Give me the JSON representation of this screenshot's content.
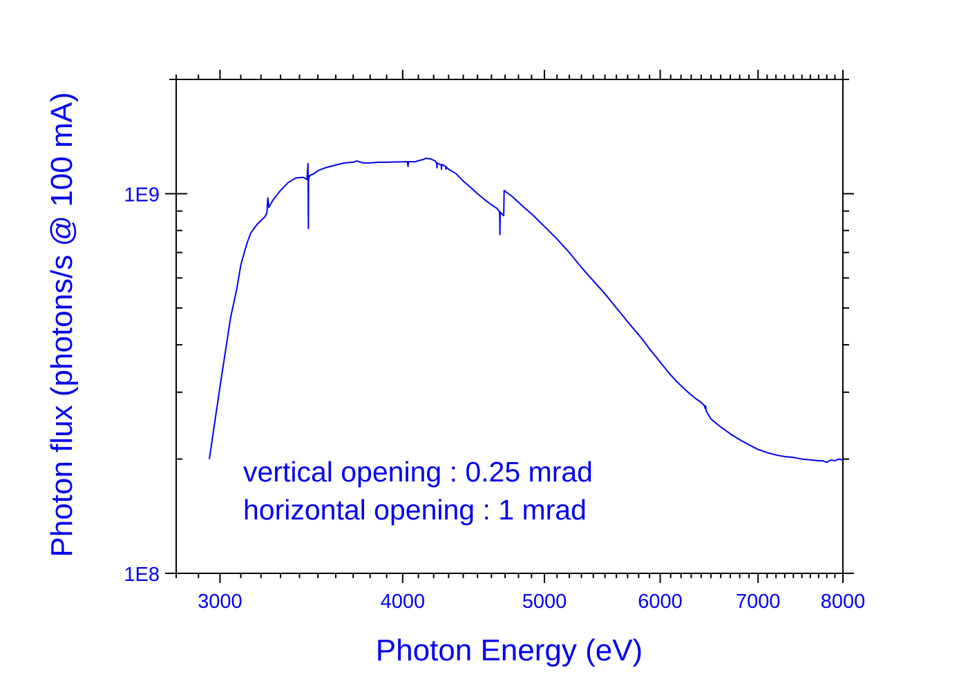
{
  "chart_data": {
    "type": "line",
    "xlabel": "Photon Energy (eV)",
    "ylabel": "Photon flux (photons/s @ 100 mA)",
    "x_scale": "log",
    "y_scale": "log",
    "xlim": [
      2800,
      8000
    ],
    "ylim": [
      100000000.0,
      2000000000.0
    ],
    "x_ticks": [
      {
        "value": 3000,
        "label": "3000"
      },
      {
        "value": 4000,
        "label": "4000"
      },
      {
        "value": 5000,
        "label": "5000"
      },
      {
        "value": 6000,
        "label": "6000"
      },
      {
        "value": 7000,
        "label": "7000"
      },
      {
        "value": 8000,
        "label": "8000"
      }
    ],
    "y_ticks": [
      {
        "value": 100000000,
        "label": "1E8"
      },
      {
        "value": 1000000000,
        "label": "1E9"
      }
    ],
    "grid": false,
    "color": "#0000ee",
    "annotations": [
      "vertical opening : 0.25 mrad",
      "horizontal opening :  1 mrad"
    ],
    "series": [
      {
        "x": [
          2950,
          3000,
          3050,
          3080,
          3100,
          3130,
          3150,
          3180,
          3220,
          3230,
          3235,
          3240,
          3260,
          3300,
          3340,
          3380,
          3420,
          3440,
          3446,
          3448,
          3449,
          3451,
          3452,
          3454,
          3456,
          3460,
          3480,
          3500,
          3540,
          3600,
          3650,
          3700,
          3720,
          3760,
          3800,
          3850,
          3900,
          3950,
          4000,
          4030,
          4034,
          4036,
          4040,
          4080,
          4100,
          4130,
          4150,
          4180,
          4210,
          4220,
          4222,
          4224,
          4240,
          4250,
          4252,
          4254,
          4270,
          4280,
          4282,
          4284,
          4300,
          4350,
          4400,
          4450,
          4500,
          4550,
          4600,
          4640,
          4655,
          4660,
          4662,
          4664,
          4690,
          4693,
          4700,
          4750,
          4800,
          4850,
          4900,
          5000,
          5100,
          5200,
          5300,
          5400,
          5500,
          5600,
          5650,
          5700,
          5750,
          5800,
          5820,
          5850,
          5900,
          5950,
          6000,
          6050,
          6100,
          6150,
          6200,
          6250,
          6300,
          6350,
          6400,
          6430,
          6440,
          6445,
          6450,
          6480,
          6500,
          6600,
          6700,
          6800,
          6900,
          7000,
          7100,
          7200,
          7300,
          7400,
          7500,
          7600,
          7700,
          7750,
          7800,
          7850,
          7900,
          7950,
          8000
        ],
        "y": [
          200000000,
          310000000,
          470000000,
          560000000,
          650000000,
          740000000,
          790000000,
          830000000,
          870000000,
          890000000,
          975000000,
          920000000,
          960000000,
          1020000000,
          1070000000,
          1100000000,
          1105000000,
          1090000000,
          1200000000,
          810000000,
          1095000000,
          1100000000,
          1115000000,
          1110000000,
          1115000000,
          1120000000,
          1130000000,
          1150000000,
          1170000000,
          1190000000,
          1205000000,
          1210000000,
          1220000000,
          1205000000,
          1205000000,
          1210000000,
          1210000000,
          1212000000,
          1213000000,
          1215000000,
          1180000000,
          1210000000,
          1215000000,
          1213000000,
          1222000000,
          1230000000,
          1240000000,
          1235000000,
          1220000000,
          1200000000,
          1170000000,
          1205000000,
          1195000000,
          1190000000,
          1160000000,
          1195000000,
          1185000000,
          1180000000,
          1160000000,
          1175000000,
          1160000000,
          1130000000,
          1080000000,
          1040000000,
          1000000000,
          965000000,
          935000000,
          915000000,
          900000000,
          890000000,
          780000000,
          895000000,
          875000000,
          1020000000,
          1015000000,
          985000000,
          950000000,
          915000000,
          885000000,
          820000000,
          760000000,
          700000000,
          640000000,
          590000000,
          545000000,
          500000000,
          480000000,
          460000000,
          442000000,
          425000000,
          418000000,
          408000000,
          390000000,
          375000000,
          360000000,
          346000000,
          333000000,
          322000000,
          312000000,
          303000000,
          295000000,
          288000000,
          282000000,
          277000000,
          272000000,
          276000000,
          268000000,
          260000000,
          255000000,
          243000000,
          233000000,
          225000000,
          218000000,
          212000000,
          208000000,
          205000000,
          203000000,
          202000000,
          200000000,
          199000000,
          198000000,
          198000000,
          196000000,
          199000000,
          198000000,
          200000000,
          199000000
        ]
      }
    ]
  }
}
